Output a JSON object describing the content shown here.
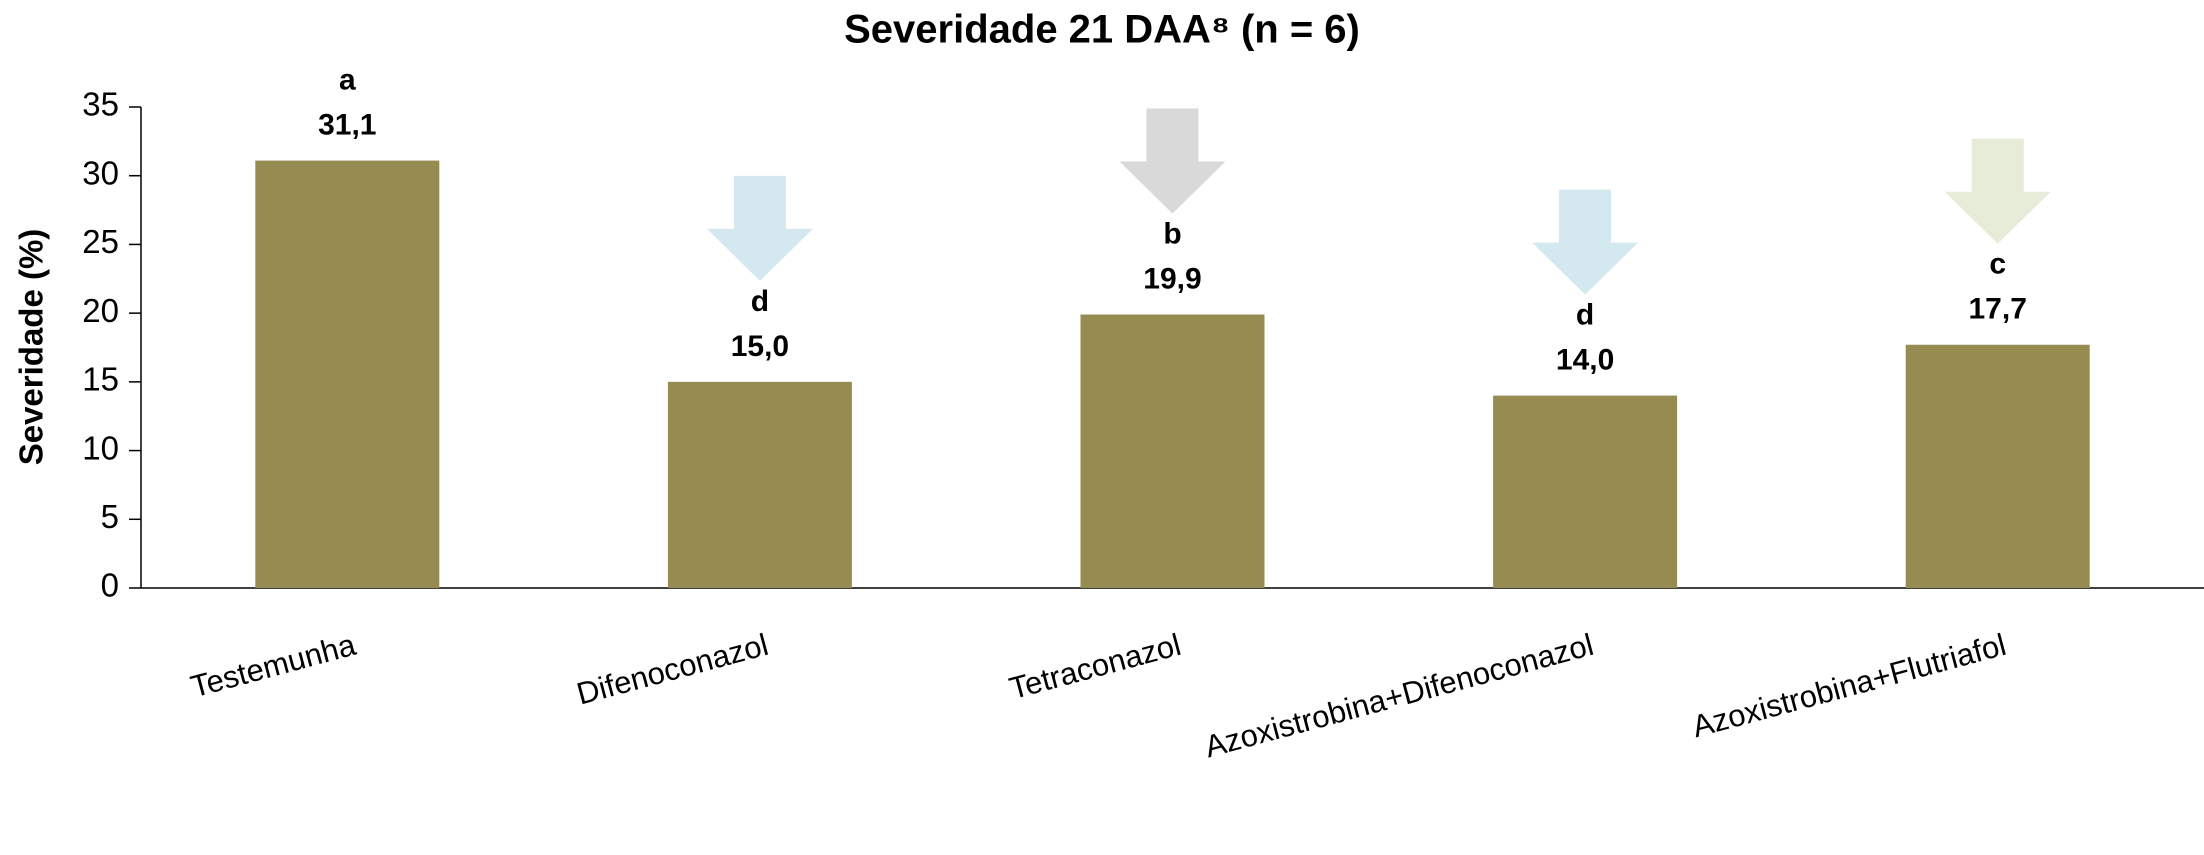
{
  "chart_data": {
    "type": "bar",
    "title": "Severidade 21 DAA⁸ (n = 6)",
    "ylabel": "Severidade (%)",
    "categories": [
      "Testemunha",
      "Difenoconazol",
      "Tetraconazol",
      "Azoxistrobina+Difenoconazol",
      "Azoxistrobina+Flutriafol"
    ],
    "values": [
      31.1,
      15.0,
      19.9,
      14.0,
      17.7
    ],
    "value_labels": [
      "31,1",
      "15,0",
      "19,9",
      "14,0",
      "17,7"
    ],
    "annotations": [
      "a",
      "d",
      "b",
      "d",
      "c"
    ],
    "arrow_colors": [
      null,
      "#d3e9ef",
      "#d9d9d9",
      "#d3e9ef",
      "#e6ecd8"
    ],
    "color": "#968c52",
    "ylim": [
      0,
      35
    ],
    "yticks": [
      0,
      5,
      10,
      15,
      20,
      25,
      30,
      35
    ],
    "grid": false
  }
}
